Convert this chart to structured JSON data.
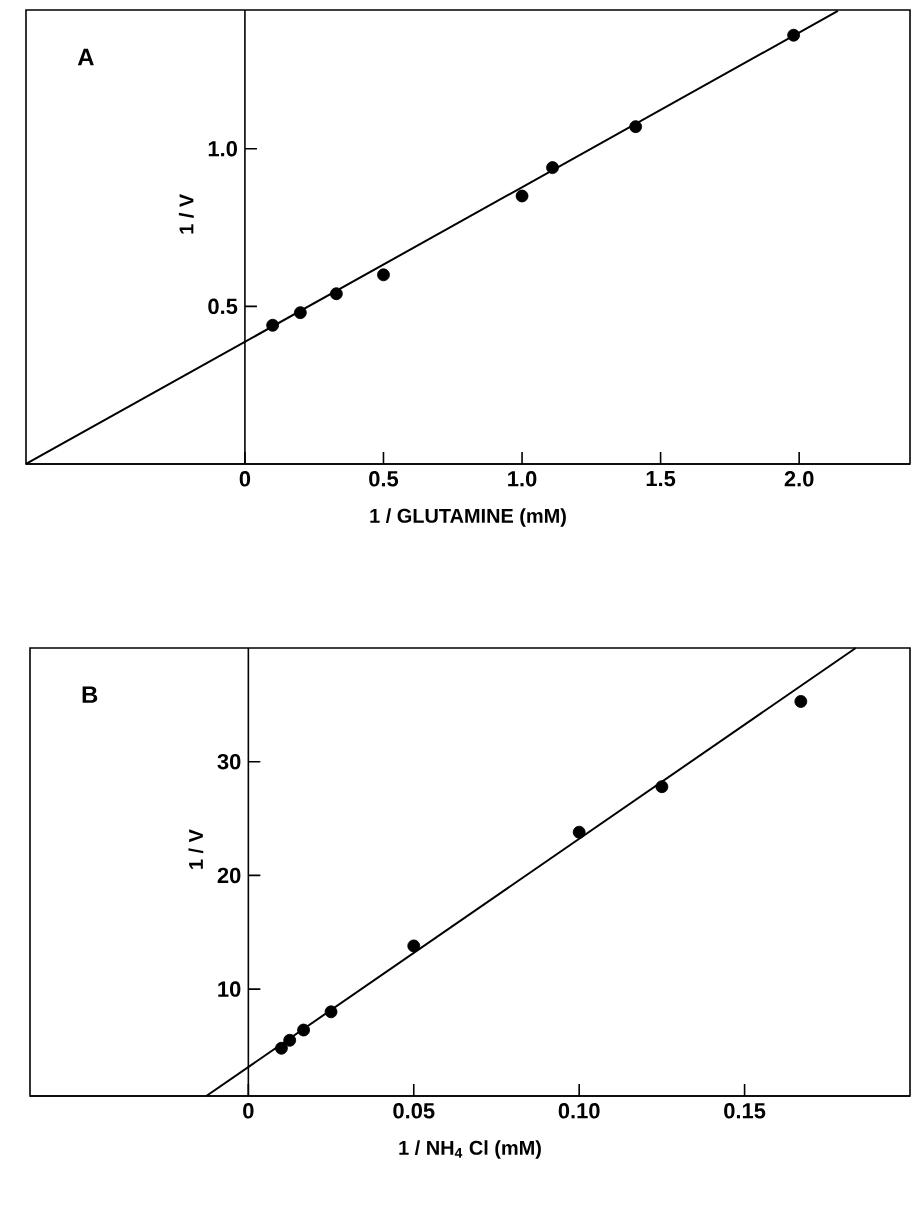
{
  "chart_data": [
    {
      "type": "scatter",
      "marker": "circle",
      "annotations": [
        "A"
      ],
      "xlabel": "1 / GLUTAMINE (mM)",
      "ylabel": "1 / V",
      "xlim": [
        -0.79,
        2.4
      ],
      "ylim": [
        0,
        1.44
      ],
      "xticks": [
        0,
        0.5,
        {
          "value": 1.0,
          "label": "1.0"
        },
        1.5,
        {
          "value": 2.0,
          "label": "2.0"
        }
      ],
      "yticks": [
        0.5,
        {
          "value": 1.0,
          "label": "1.0"
        }
      ],
      "series": [
        {
          "type": "scatter",
          "color": "#000000",
          "x": [
            0.1,
            0.2,
            0.33,
            0.5,
            1.0,
            1.11,
            1.41,
            1.98
          ],
          "values": [
            0.44,
            0.48,
            0.54,
            0.6,
            0.85,
            0.94,
            1.07,
            1.36
          ]
        },
        {
          "type": "line",
          "color": "#000000",
          "marker": "none",
          "x": [
            -0.79,
            2.14
          ],
          "values": [
            0,
            1.437
          ]
        }
      ]
    },
    {
      "type": "scatter",
      "marker": "circle",
      "annotations": [
        "B"
      ],
      "xlabel": "1 / NH$_{4}$ Cl (mM)",
      "ylabel": "1 / V",
      "xlim": [
        -0.066,
        0.2
      ],
      "ylim": [
        0.6,
        40
      ],
      "xticks": [
        0,
        0.05,
        {
          "value": 0.1,
          "label": "0.10"
        },
        0.15
      ],
      "yticks": [
        10,
        20,
        30
      ],
      "series": [
        {
          "type": "scatter",
          "color": "#000000",
          "x": [
            0.01,
            0.0125,
            0.0167,
            0.025,
            0.05,
            0.1,
            0.125,
            0.167
          ],
          "values": [
            4.8,
            5.5,
            6.4,
            8.0,
            13.8,
            23.8,
            27.8,
            35.3
          ]
        },
        {
          "type": "line",
          "color": "#000000",
          "marker": "none",
          "x": [
            -0.0127,
            0.1836
          ],
          "values": [
            0.6,
            40
          ]
        }
      ]
    }
  ]
}
